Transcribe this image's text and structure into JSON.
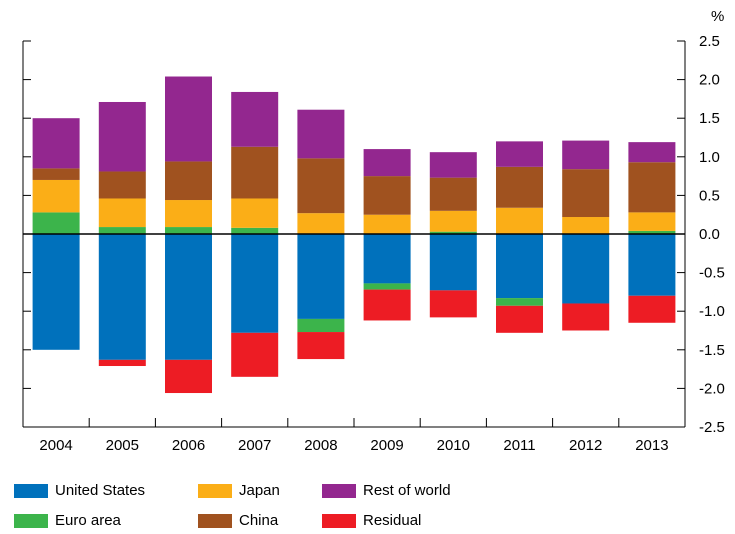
{
  "chart_data": {
    "type": "bar",
    "stacked": true,
    "unit_label": "%",
    "categories": [
      "2004",
      "2005",
      "2006",
      "2007",
      "2008",
      "2009",
      "2010",
      "2011",
      "2012",
      "2013"
    ],
    "ylim": [
      -2.5,
      2.5
    ],
    "yticks": [
      2.5,
      2.0,
      1.5,
      1.0,
      0.5,
      0.0,
      -0.5,
      -1.0,
      -1.5,
      -2.0,
      -2.5
    ],
    "ytick_labels": [
      "2.5",
      "2.0",
      "1.5",
      "1.0",
      "0.5",
      "0.0",
      "-0.5",
      "-1.0",
      "-1.5",
      "-2.0",
      "-2.5"
    ],
    "grid": false,
    "legend_position": "bottom",
    "series": [
      {
        "name": "United States",
        "color": "#0071bc",
        "values": [
          -1.5,
          -1.63,
          -1.63,
          -1.28,
          -1.1,
          -0.64,
          -0.73,
          -0.83,
          -0.9,
          -0.8
        ]
      },
      {
        "name": "Euro area",
        "color": "#3cb44b",
        "values": [
          0.28,
          0.09,
          0.09,
          0.08,
          -0.17,
          -0.08,
          0.03,
          -0.1,
          0.0,
          0.04
        ]
      },
      {
        "name": "Japan",
        "color": "#fbae17",
        "values": [
          0.42,
          0.37,
          0.35,
          0.38,
          0.27,
          0.25,
          0.27,
          0.34,
          0.22,
          0.24
        ]
      },
      {
        "name": "China",
        "color": "#a0521f",
        "values": [
          0.15,
          0.35,
          0.5,
          0.67,
          0.71,
          0.5,
          0.43,
          0.53,
          0.62,
          0.65
        ]
      },
      {
        "name": "Rest of world",
        "color": "#93278f",
        "values": [
          0.65,
          0.9,
          1.1,
          0.71,
          0.63,
          0.35,
          0.33,
          0.33,
          0.37,
          0.26
        ]
      },
      {
        "name": "Residual",
        "color": "#ed1c24",
        "values": [
          0.0,
          -0.08,
          -0.43,
          -0.57,
          -0.35,
          -0.4,
          -0.35,
          -0.35,
          -0.35,
          -0.35
        ]
      }
    ]
  }
}
